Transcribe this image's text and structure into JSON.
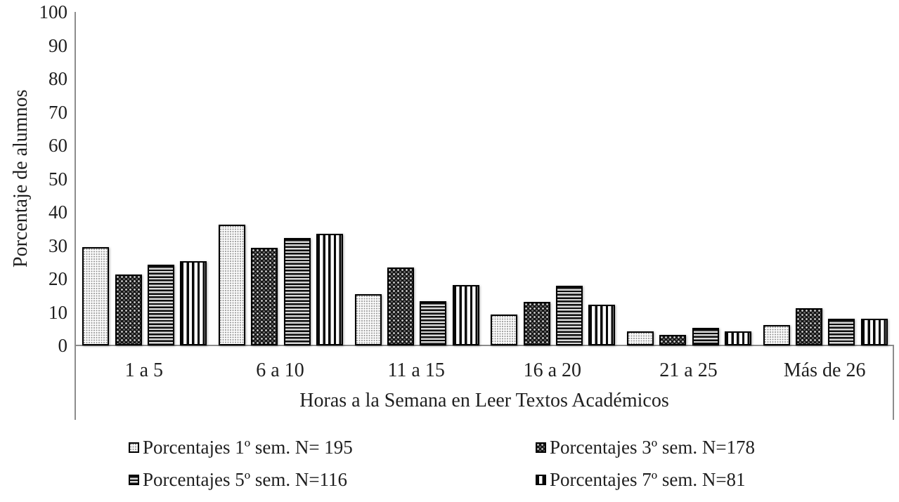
{
  "chart_data": {
    "type": "bar",
    "title": "",
    "categories": [
      "1 a 5",
      "6 a 10",
      "11 a 15",
      "16 a 20",
      "21 a 25",
      "Más de 26"
    ],
    "series": [
      {
        "name": "Porcentajes 1º sem. N= 195",
        "pattern": "dots-light",
        "values": [
          29.4,
          36.2,
          15.3,
          9.2,
          4.3,
          6.2
        ]
      },
      {
        "name": "Porcentajes 3º sem. N=178",
        "pattern": "dots-dark",
        "values": [
          21.2,
          29.3,
          23.3,
          13.0,
          3.2,
          11.2
        ]
      },
      {
        "name": "Porcentajes 5º sem. N=116",
        "pattern": "hlines",
        "values": [
          24.2,
          32.3,
          13.2,
          17.8,
          5.3,
          8.0
        ]
      },
      {
        "name": "Porcentajes 7º sem. N=81",
        "pattern": "vlines",
        "values": [
          25.3,
          33.4,
          18.2,
          12.2,
          4.2,
          8.1
        ]
      }
    ],
    "xlabel": "Horas a la Semana en Leer Textos Académicos",
    "ylabel": "Porcentaje de alumnos",
    "ylim": [
      0,
      100
    ],
    "yticks": [
      0,
      10,
      20,
      30,
      40,
      50,
      60,
      70,
      80,
      90,
      100
    ],
    "grid": false,
    "legend_position": "bottom"
  },
  "colors": {
    "axis_line": "#8c8c8c",
    "text": "#1f1f1f",
    "bar_border": "#000000",
    "background": "#ffffff"
  }
}
